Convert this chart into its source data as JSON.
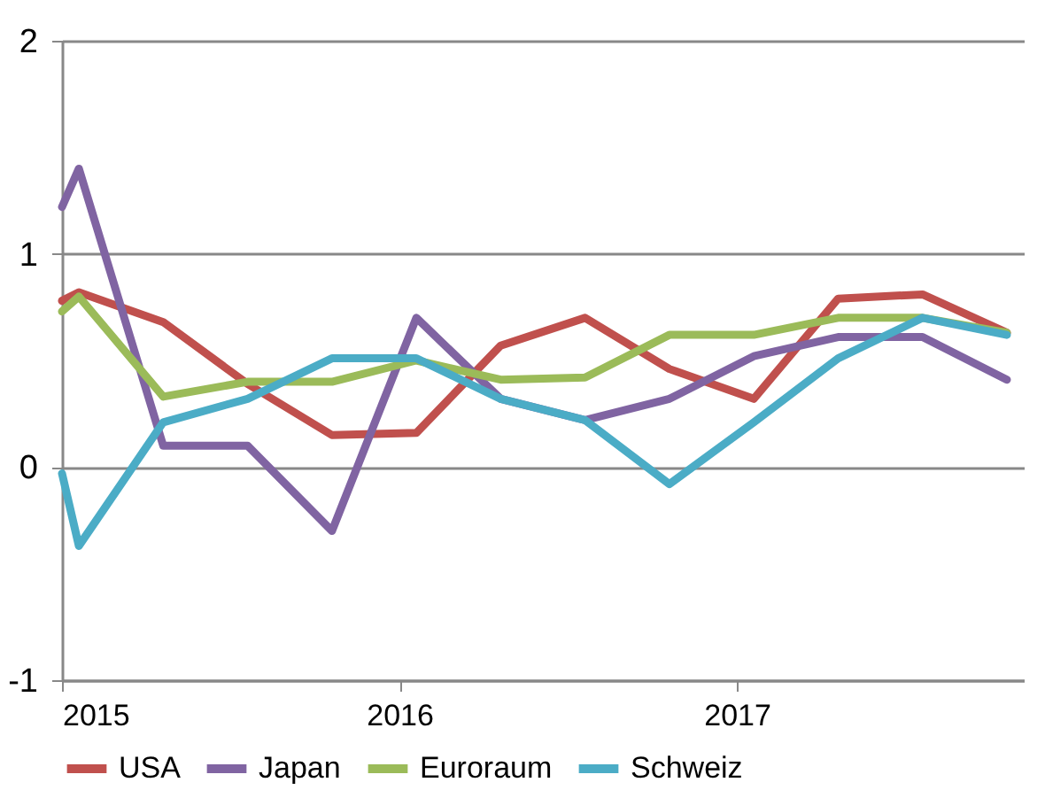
{
  "chart_data": {
    "type": "line",
    "x": [
      2015,
      2015.05,
      2015.3,
      2015.55,
      2015.8,
      2016.05,
      2016.3,
      2016.55,
      2016.8,
      2017.05,
      2017.3,
      2017.55,
      2017.8
    ],
    "xlim": [
      2015,
      2017.85
    ],
    "xticks": [
      2015,
      2016,
      2017
    ],
    "ylim": [
      -1,
      2
    ],
    "yticks": [
      -1,
      0,
      1,
      2
    ],
    "grid": "y",
    "legend": "bottom",
    "series": [
      {
        "name": "USA",
        "color": "#c0504d",
        "values": [
          0.78,
          0.82,
          0.68,
          0.39,
          0.15,
          0.16,
          0.57,
          0.7,
          0.46,
          0.32,
          0.79,
          0.81,
          0.63
        ]
      },
      {
        "name": "Japan",
        "color": "#8064a2",
        "values": [
          1.22,
          1.4,
          0.1,
          0.1,
          -0.3,
          0.7,
          0.32,
          0.22,
          0.32,
          0.52,
          0.61,
          0.61,
          0.41
        ]
      },
      {
        "name": "Euroraum",
        "color": "#9bbb59",
        "values": [
          0.73,
          0.8,
          0.33,
          0.4,
          0.4,
          0.5,
          0.41,
          0.42,
          0.62,
          0.62,
          0.7,
          0.7,
          0.63
        ]
      },
      {
        "name": "Schweiz",
        "color": "#4bacc6",
        "values": [
          -0.03,
          -0.37,
          0.21,
          0.32,
          0.51,
          0.51,
          0.32,
          0.22,
          -0.08,
          0.21,
          0.51,
          0.7,
          0.62
        ]
      }
    ]
  }
}
